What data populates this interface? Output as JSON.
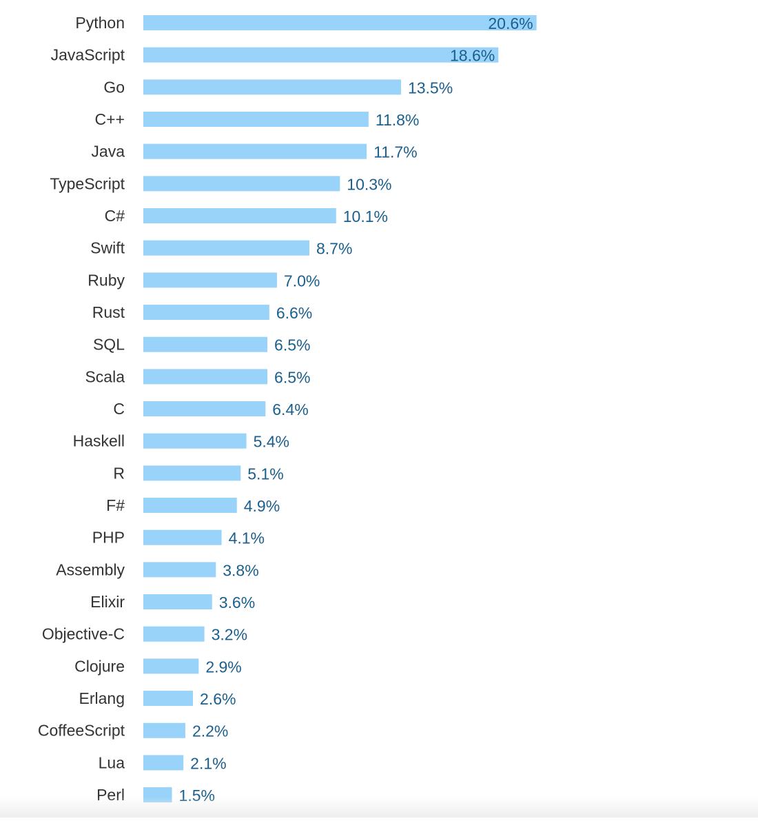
{
  "chart_data": {
    "type": "bar",
    "orientation": "horizontal",
    "title": "",
    "xlabel": "",
    "ylabel": "",
    "value_suffix": "%",
    "grid": false,
    "bar_color": "#99d3fa",
    "category_label_color": "#333333",
    "value_label_color": "#1a5f8e",
    "categories": [
      "Python",
      "JavaScript",
      "Go",
      "C++",
      "Java",
      "TypeScript",
      "C#",
      "Swift",
      "Ruby",
      "Rust",
      "SQL",
      "Scala",
      "C",
      "Haskell",
      "R",
      "F#",
      "PHP",
      "Assembly",
      "Elixir",
      "Objective-C",
      "Clojure",
      "Erlang",
      "CoffeeScript",
      "Lua",
      "Perl"
    ],
    "values": [
      20.6,
      18.6,
      13.5,
      11.8,
      11.7,
      10.3,
      10.1,
      8.7,
      7.0,
      6.6,
      6.5,
      6.5,
      6.4,
      5.4,
      5.1,
      4.9,
      4.1,
      3.8,
      3.6,
      3.2,
      2.9,
      2.6,
      2.2,
      2.1,
      1.5
    ],
    "value_labels": [
      "20.6%",
      "18.6%",
      "13.5%",
      "11.8%",
      "11.7%",
      "10.3%",
      "10.1%",
      "8.7%",
      "7.0%",
      "6.6%",
      "6.5%",
      "6.5%",
      "6.4%",
      "5.4%",
      "5.1%",
      "4.9%",
      "4.1%",
      "3.8%",
      "3.6%",
      "3.2%",
      "2.9%",
      "2.6%",
      "2.2%",
      "2.1%",
      "1.5%"
    ]
  }
}
